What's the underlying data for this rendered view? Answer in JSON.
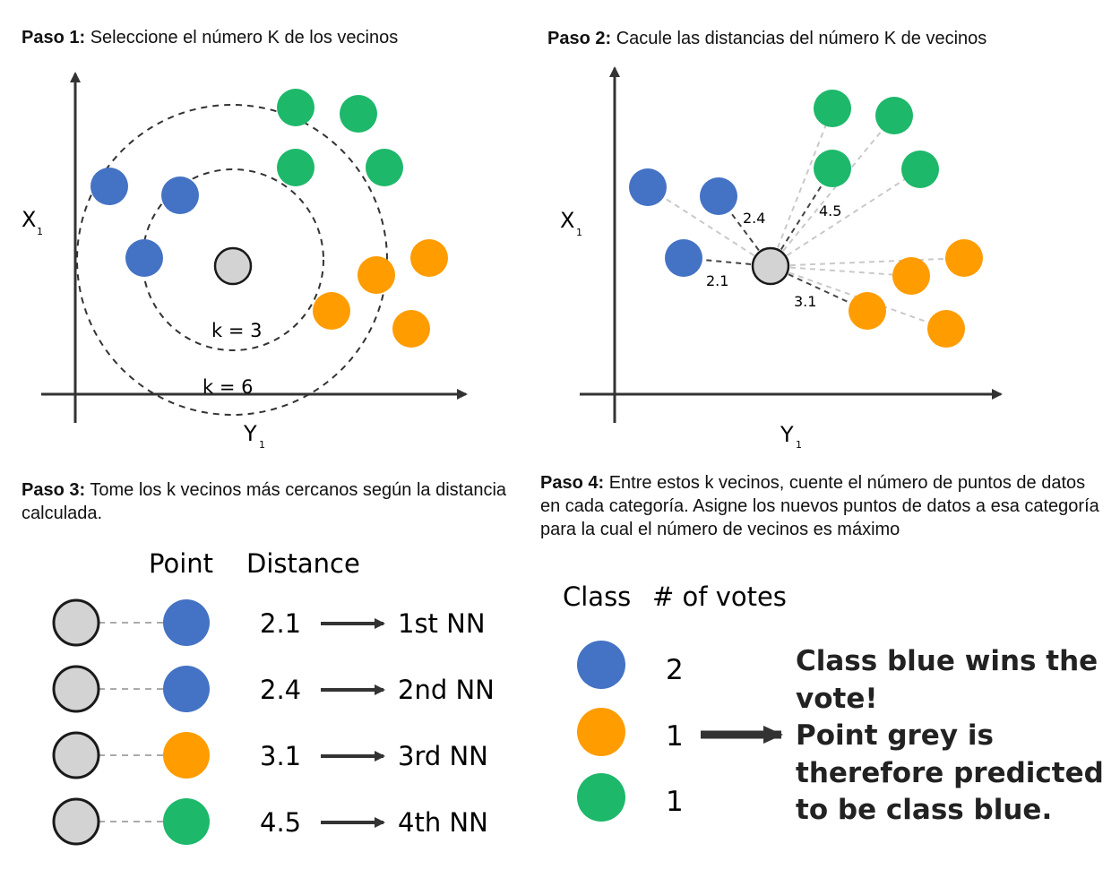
{
  "steps": [
    {
      "label": "Paso 1:",
      "text": "Seleccione el número K de los vecinos"
    },
    {
      "label": "Paso 2:",
      "text": "Cacule las distancias del número K de vecinos"
    },
    {
      "label": "Paso 3:",
      "text": "Tome los k vecinos más cercanos según la distancia calculada."
    },
    {
      "label": "Paso 4:",
      "text": "Entre estos k vecinos, cuente el número de puntos de datos en cada categoría. Asigne los nuevos puntos de datos a esa categoría para la cual el número de vecinos es máximo"
    }
  ],
  "axes": {
    "x_label": "Y",
    "x_sub": "1",
    "y_label": "X",
    "y_sub": "1"
  },
  "circles": {
    "k3": "k = 3",
    "k6": "k = 6"
  },
  "distances": [
    "2.4",
    "4.5",
    "2.1",
    "3.1"
  ],
  "colors": {
    "blue": "#4472c4",
    "green": "#1db86a",
    "orange": "#ff9c00",
    "grey": "#d3d3d3",
    "outline": "#1a1a1a"
  },
  "table": {
    "headers": [
      "Point",
      "Distance"
    ],
    "rows": [
      {
        "class": "blue",
        "distance": "2.1",
        "rank": "1st NN"
      },
      {
        "class": "blue",
        "distance": "2.4",
        "rank": "2nd NN"
      },
      {
        "class": "orange",
        "distance": "3.1",
        "rank": "3rd NN"
      },
      {
        "class": "green",
        "distance": "4.5",
        "rank": "4th NN"
      }
    ]
  },
  "votes": {
    "headers": [
      "Class",
      "# of votes"
    ],
    "rows": [
      {
        "class": "blue",
        "count": "2"
      },
      {
        "class": "orange",
        "count": "1"
      },
      {
        "class": "green",
        "count": "1"
      }
    ]
  },
  "conclusion": [
    "Class blue wins the",
    "vote!",
    "Point grey is",
    "therefore predicted",
    "to be class blue."
  ]
}
